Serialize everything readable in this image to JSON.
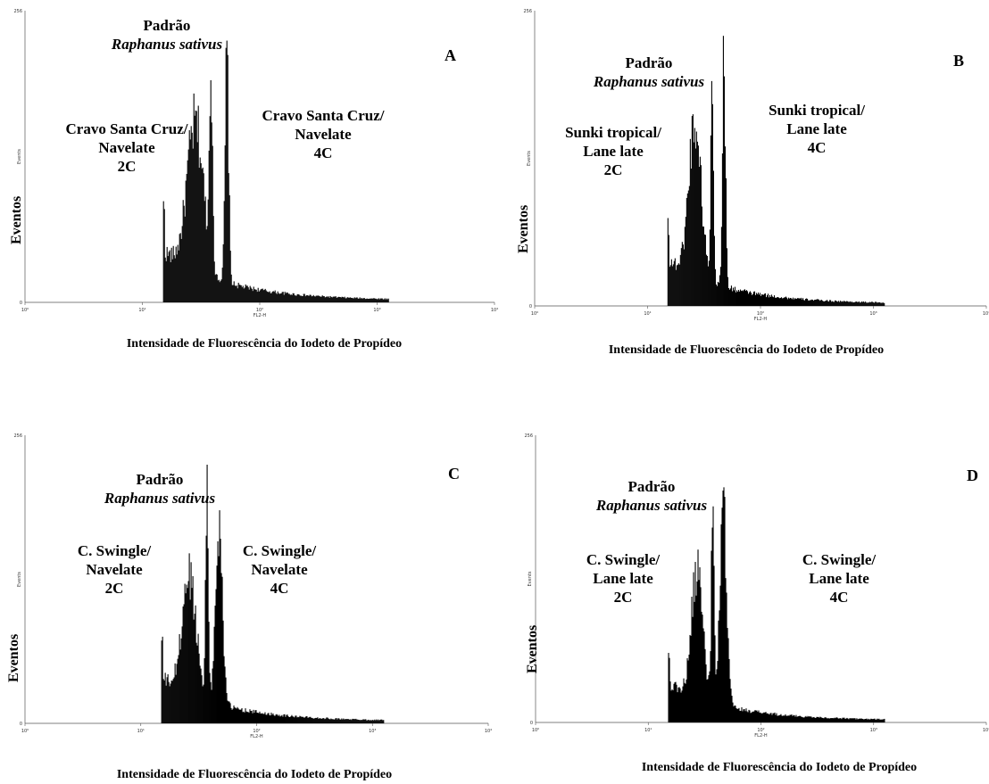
{
  "common": {
    "ylabel": "Eventos",
    "xtitle": "Intensidade de Fluorescência do Iodeto de Propídeo",
    "x_tick_labels": [
      "10⁰",
      "10¹",
      "10²",
      "10³",
      "10⁴"
    ],
    "x_axis_label": "FL2-H",
    "y_tick_labels": [
      "0",
      "Events",
      "256"
    ]
  },
  "chart_data": [
    {
      "type": "area",
      "panel": "A",
      "xscale": "log",
      "xlim": [
        1,
        10000
      ],
      "ylim": [
        0,
        256
      ],
      "labels": {
        "standard": "Padrão",
        "standard_species": "Raphanus sativus",
        "g1": [
          "Cravo Santa Cruz/",
          "Navelate",
          "2C"
        ],
        "g2": [
          "Cravo Santa Cruz/",
          "Navelate",
          "4C"
        ]
      },
      "gate_start": 15,
      "baseline": 45,
      "peaks": [
        {
          "x": 28,
          "y": 135,
          "width": 0.07
        },
        {
          "x": 38,
          "y": 190,
          "width": 0.012
        },
        {
          "x": 52,
          "y": 210,
          "width": 0.015
        }
      ]
    },
    {
      "type": "area",
      "panel": "B",
      "xscale": "log",
      "xlim": [
        1,
        10000
      ],
      "ylim": [
        0,
        256
      ],
      "labels": {
        "standard": "Padrão",
        "standard_species": "Raphanus sativus",
        "g1": [
          "Sunki tropical/",
          "Lane late",
          "2C"
        ],
        "g2": [
          "Sunki tropical/",
          "Lane late",
          "4C"
        ]
      },
      "gate_start": 15,
      "baseline": 40,
      "peaks": [
        {
          "x": 26,
          "y": 140,
          "width": 0.055
        },
        {
          "x": 37,
          "y": 190,
          "width": 0.012
        },
        {
          "x": 47,
          "y": 205,
          "width": 0.014
        }
      ]
    },
    {
      "type": "area",
      "panel": "C",
      "xscale": "log",
      "xlim": [
        1,
        10000
      ],
      "ylim": [
        0,
        256
      ],
      "labels": {
        "standard": "Padrão",
        "standard_species": "Raphanus sativus",
        "g1": [
          "C. Swingle/",
          "Navelate",
          "2C"
        ],
        "g2": [
          "C. Swingle/",
          "Navelate",
          "4C"
        ]
      },
      "gate_start": 15,
      "baseline": 40,
      "peaks": [
        {
          "x": 26,
          "y": 110,
          "width": 0.06
        },
        {
          "x": 37,
          "y": 190,
          "width": 0.012
        },
        {
          "x": 47,
          "y": 165,
          "width": 0.03
        }
      ]
    },
    {
      "type": "area",
      "panel": "D",
      "xscale": "log",
      "xlim": [
        1,
        10000
      ],
      "ylim": [
        0,
        256
      ],
      "labels": {
        "standard": "Padrão",
        "standard_species": "Raphanus sativus",
        "g1": [
          "C. Swingle/",
          "Lane late",
          "2C"
        ],
        "g2": [
          "C. Swingle/",
          "Lane late",
          "4C"
        ]
      },
      "gate_start": 15,
      "baseline": 35,
      "peaks": [
        {
          "x": 27,
          "y": 120,
          "width": 0.05
        },
        {
          "x": 37,
          "y": 190,
          "width": 0.012
        },
        {
          "x": 46,
          "y": 180,
          "width": 0.03
        }
      ]
    }
  ]
}
